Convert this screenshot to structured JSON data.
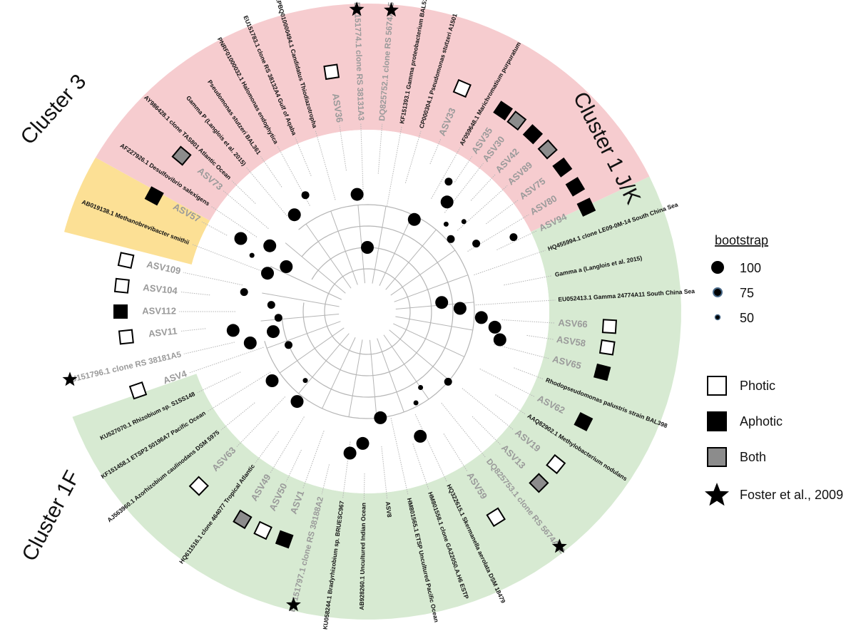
{
  "colors": {
    "cluster_jk": "#f6cccf",
    "cluster_1f": "#d7ead2",
    "cluster_3": "#fce095",
    "photic": "#ffffff",
    "aphotic": "#000000",
    "both": "#8c8c8c",
    "branch": "#b5b5b5",
    "node": "#000000"
  },
  "clusters": [
    {
      "id": "jk",
      "label": "Cluster 1 J/K",
      "start_deg": -60,
      "end_deg": 64
    },
    {
      "id": "f",
      "label": "Cluster 1F",
      "start_deg": 64,
      "end_deg": 250
    },
    {
      "id": "c3",
      "label": "Cluster 3",
      "start_deg": -75,
      "end_deg": -60
    }
  ],
  "tips": [
    {
      "angle": -69,
      "label": "AB019138.1 Methanobrevibacter smithii",
      "style": "black",
      "habitat": null,
      "foster": false
    },
    {
      "angle": -56,
      "label": "AF227926.1 Desulfovibrio salexigens",
      "style": "black",
      "habitat": null,
      "foster": false
    },
    {
      "angle": -61.5,
      "label": "ASV57",
      "style": "asv",
      "habitat": "aphotic",
      "foster": false
    },
    {
      "angle": -50,
      "label": "ASV73",
      "style": "asv",
      "habitat": "both",
      "foster": false
    },
    {
      "angle": -46,
      "label": "AY986428.1 clone TAS801 Atlantic Ocean",
      "style": "black",
      "habitat": null,
      "foster": false
    },
    {
      "angle": -40,
      "label": "Gamma P (Langlois et al. 2015)",
      "style": "black",
      "habitat": null,
      "foster": false
    },
    {
      "angle": -34.5,
      "label": "Pseudomonas stutzeri BAL361",
      "style": "black",
      "habitat": null,
      "foster": false
    },
    {
      "angle": -28.5,
      "label": "PNRF01000032.1 Halomonas endophytica",
      "style": "black",
      "habitat": null,
      "foster": false
    },
    {
      "angle": -22.5,
      "label": "EU151783.1 clone RS 38132A4 Gulf of Aqaba",
      "style": "black",
      "habitat": null,
      "foster": false
    },
    {
      "angle": -16,
      "label": "JAEPBQ010000494.1 Candidatus Thiodiazotropha",
      "style": "black",
      "habitat": null,
      "foster": false
    },
    {
      "angle": -8.5,
      "label": "ASV36",
      "style": "asv",
      "habitat": "photic",
      "foster": false
    },
    {
      "angle": -2,
      "label": "EU151774.1 clone RS 38131A3",
      "style": "grey",
      "habitat": null,
      "foster": true
    },
    {
      "angle": 4.5,
      "label": "DQ825752.1 clone RS 5674A15",
      "style": "grey",
      "habitat": null,
      "foster": true
    },
    {
      "angle": 10.5,
      "label": "KF151393.1 Gamma proteobacterium BAL511",
      "style": "black",
      "habitat": null,
      "foster": false
    },
    {
      "angle": 16.5,
      "label": "CP000304.1 Pseudomonas stutzeri A1501",
      "style": "black",
      "habitat": null,
      "foster": false
    },
    {
      "angle": 23,
      "label": "ASV33",
      "style": "asv",
      "habitat": "photic",
      "foster": false
    },
    {
      "angle": 29.5,
      "label": "AF059648.1 Marichromatium purpuratum",
      "style": "black",
      "habitat": null,
      "foster": false
    },
    {
      "angle": 34,
      "label": "ASV35",
      "style": "asv",
      "habitat": "aphotic",
      "foster": false
    },
    {
      "angle": 38,
      "label": "ASV30",
      "style": "asv",
      "habitat": "both",
      "foster": false
    },
    {
      "angle": 43,
      "label": "ASV42",
      "style": "asv",
      "habitat": "aphotic",
      "foster": false
    },
    {
      "angle": 48,
      "label": "ASV89",
      "style": "asv",
      "habitat": "both",
      "foster": false
    },
    {
      "angle": 53.5,
      "label": "ASV75",
      "style": "asv",
      "habitat": "aphotic",
      "foster": false
    },
    {
      "angle": 59,
      "label": "ASV80",
      "style": "asv",
      "habitat": "aphotic",
      "foster": false
    },
    {
      "angle": 64.5,
      "label": "ASV94",
      "style": "asv",
      "habitat": "aphotic",
      "foster": false
    },
    {
      "angle": 71,
      "label": "HQ455994.1 clone LE09-0M-14 South China Sea",
      "style": "black",
      "habitat": null,
      "foster": false
    },
    {
      "angle": 79,
      "label": "Gamma a (Langlois et al. 2015)",
      "style": "black",
      "habitat": null,
      "foster": false
    },
    {
      "angle": 86.5,
      "label": "EU052413.1 Gamma 24774A11 South China Sea",
      "style": "black",
      "habitat": null,
      "foster": false
    },
    {
      "angle": 93.5,
      "label": "ASV66",
      "style": "asv",
      "habitat": "photic",
      "foster": false
    },
    {
      "angle": 98.5,
      "label": "ASV58",
      "style": "asv",
      "habitat": "photic",
      "foster": false
    },
    {
      "angle": 104.5,
      "label": "ASV65",
      "style": "asv",
      "habitat": "aphotic",
      "foster": false
    },
    {
      "angle": 111,
      "label": "Rhodopseudomonas palustris strain BAL398",
      "style": "black",
      "habitat": null,
      "foster": false
    },
    {
      "angle": 117,
      "label": "ASV62",
      "style": "asv",
      "habitat": "aphotic",
      "foster": false
    },
    {
      "angle": 123,
      "label": "AAQ82902.1 Methylobacterium nodulans",
      "style": "black",
      "habitat": null,
      "foster": false
    },
    {
      "angle": 129,
      "label": "ASV19",
      "style": "asv",
      "habitat": "photic",
      "foster": false
    },
    {
      "angle": 135,
      "label": "ASV13",
      "style": "asv",
      "habitat": "both",
      "foster": false
    },
    {
      "angle": 141,
      "label": "DQ825753.1 clone RS 5674A22",
      "style": "grey",
      "habitat": null,
      "foster": true
    },
    {
      "angle": 148,
      "label": "ASV59",
      "style": "asv",
      "habitat": "photic",
      "foster": false
    },
    {
      "angle": 155,
      "label": "HQ322615.1 Skermanella aerolata DSM 18479",
      "style": "black",
      "habitat": null,
      "foster": false
    },
    {
      "angle": 161,
      "label": "HM801558.1 clone GA22050.A.H6 ESTP",
      "style": "black",
      "habitat": null,
      "foster": false
    },
    {
      "angle": 167.5,
      "label": "HM801565.1 ETSP Uncultured Pacific Ocean",
      "style": "black",
      "habitat": null,
      "foster": false
    },
    {
      "angle": 174,
      "label": "ASV8",
      "style": "black",
      "habitat": null,
      "foster": false
    },
    {
      "angle": 181,
      "label": "AB928260.1 Uncultured Indian Ocean",
      "style": "black",
      "habitat": null,
      "foster": false
    },
    {
      "angle": 187.5,
      "label": "KU058244.1 Bradyrhizobium sp. BRUESC967",
      "style": "black",
      "habitat": null,
      "foster": false
    },
    {
      "angle": 194,
      "label": "EU151797.1 clone RS 38188A2",
      "style": "grey",
      "habitat": null,
      "foster": true
    },
    {
      "angle": 200,
      "label": "ASV1",
      "style": "asv",
      "habitat": "aphotic",
      "foster": false
    },
    {
      "angle": 205.5,
      "label": "ASV50",
      "style": "asv",
      "habitat": "photic",
      "foster": false
    },
    {
      "angle": 211,
      "label": "ASV49",
      "style": "asv",
      "habitat": "both",
      "foster": false
    },
    {
      "angle": 216.5,
      "label": "HQ611516.1 clone 464077 Tropical Atlantic",
      "style": "black",
      "habitat": null,
      "foster": false
    },
    {
      "angle": 224,
      "label": "ASV63",
      "style": "asv",
      "habitat": "photic",
      "foster": false
    },
    {
      "angle": 231,
      "label": "AJ563960.1 Azorhizobium caulinodans DSM 5975",
      "style": "black",
      "habitat": null,
      "foster": false
    },
    {
      "angle": 238,
      "label": "KF151458.1 ETSP2 50196A7 Pacific Ocean",
      "style": "black",
      "habitat": null,
      "foster": false
    },
    {
      "angle": 244.5,
      "label": "KU527070.1 Rhizobium sp. S1SS148",
      "style": "black",
      "habitat": null,
      "foster": false
    },
    {
      "angle": 251,
      "label": "ASV4",
      "style": "asv",
      "habitat": "photic",
      "foster": false
    },
    {
      "angle": 257,
      "label": "EU151796.1 clone RS 38181A5",
      "style": "grey",
      "habitat": null,
      "foster": true
    },
    {
      "angle": 264,
      "label": "ASV11",
      "style": "asv",
      "habitat": "photic",
      "foster": false
    },
    {
      "angle": 270,
      "label": "ASV112",
      "style": "asv",
      "habitat": "aphotic",
      "foster": false
    },
    {
      "angle": 276,
      "label": "ASV104",
      "style": "asv",
      "habitat": "photic",
      "foster": false
    },
    {
      "angle": 282,
      "label": "ASV109",
      "style": "asv",
      "habitat": "photic",
      "foster": false
    }
  ],
  "nodes": [
    {
      "angle": -64,
      "r": 0.36,
      "support": 50
    },
    {
      "angle": -37,
      "r": 0.34,
      "support": 100
    },
    {
      "angle": -28,
      "r": 0.37,
      "support": 75
    },
    {
      "angle": -60,
      "r": 0.41,
      "support": 100
    },
    {
      "angle": -5,
      "r": 0.33,
      "support": 100
    },
    {
      "angle": 32,
      "r": 0.43,
      "support": 75
    },
    {
      "angle": 36,
      "r": 0.38,
      "support": 100
    },
    {
      "angle": 27,
      "r": 0.29,
      "support": 100
    },
    {
      "angle": 42,
      "r": 0.33,
      "support": 50
    },
    {
      "angle": 47,
      "r": 0.37,
      "support": 50
    },
    {
      "angle": 49,
      "r": 0.31,
      "support": 75
    },
    {
      "angle": 58,
      "r": 0.36,
      "support": 75
    },
    {
      "angle": 63,
      "r": 0.46,
      "support": 75
    },
    {
      "angle": 83,
      "r": 0.21,
      "support": 100
    },
    {
      "angle": 88,
      "r": 0.26,
      "support": 100
    },
    {
      "angle": 93,
      "r": 0.32,
      "support": 100
    },
    {
      "angle": 97,
      "r": 0.36,
      "support": 100
    },
    {
      "angle": 102,
      "r": 0.38,
      "support": 100
    },
    {
      "angle": 131,
      "r": 0.3,
      "support": 75
    },
    {
      "angle": 145,
      "r": 0.26,
      "support": 50
    },
    {
      "angle": 152,
      "r": 0.29,
      "support": 50
    },
    {
      "angle": 157,
      "r": 0.38,
      "support": 100
    },
    {
      "angle": 173,
      "r": 0.3,
      "support": 100
    },
    {
      "angle": 182,
      "r": 0.37,
      "support": 100
    },
    {
      "angle": 187,
      "r": 0.4,
      "support": 100
    },
    {
      "angle": 218,
      "r": 0.32,
      "support": 100
    },
    {
      "angle": 222,
      "r": 0.26,
      "support": 50
    },
    {
      "angle": 234,
      "r": 0.33,
      "support": 100
    },
    {
      "angle": 247,
      "r": 0.24,
      "support": 75
    },
    {
      "angle": 255,
      "r": 0.34,
      "support": 100
    },
    {
      "angle": 258,
      "r": 0.27,
      "support": 100
    },
    {
      "angle": 262,
      "r": 0.38,
      "support": 100
    },
    {
      "angle": 266,
      "r": 0.25,
      "support": 75
    },
    {
      "angle": 274,
      "r": 0.27,
      "support": 75
    },
    {
      "angle": 279,
      "r": 0.35,
      "support": 75
    },
    {
      "angle": 291,
      "r": 0.3,
      "support": 100
    },
    {
      "angle": 299,
      "r": 0.26,
      "support": 100
    },
    {
      "angle": 304,
      "r": 0.33,
      "support": 100
    },
    {
      "angle": 0,
      "r": 0.18,
      "support": 100
    }
  ],
  "legend": {
    "bootstrap_title": "bootstrap",
    "bootstrap": [
      {
        "value": 100,
        "label": "100"
      },
      {
        "value": 75,
        "label": "75"
      },
      {
        "value": 50,
        "label": "50"
      }
    ],
    "habitats": [
      {
        "key": "photic",
        "label": "Photic"
      },
      {
        "key": "aphotic",
        "label": "Aphotic"
      },
      {
        "key": "both",
        "label": "Both"
      }
    ],
    "foster_label": "Foster et al., 2009"
  }
}
